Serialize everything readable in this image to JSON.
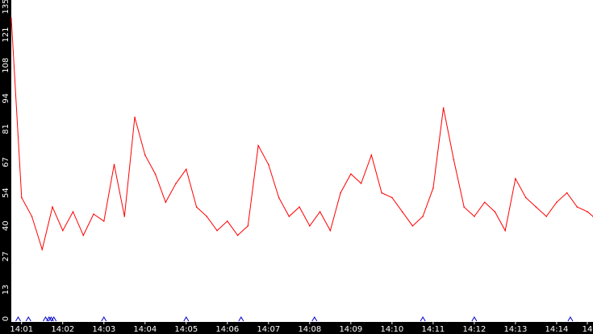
{
  "chart_data": {
    "type": "line",
    "title": "",
    "xlabel": "",
    "ylabel": "",
    "ylim": [
      0,
      135
    ],
    "y_ticks": [
      "0",
      "13",
      "27",
      "40",
      "54",
      "67",
      "81",
      "94",
      "108",
      "121",
      "135"
    ],
    "x_ticks": [
      "14:01",
      "14:02",
      "14:03",
      "14:04",
      "14:05",
      "14:06",
      "14:07",
      "14:08",
      "14:09",
      "14:10",
      "14:11",
      "14:12",
      "14:13",
      "14:14",
      "14"
    ],
    "grid": false,
    "legend": "none",
    "colors": {
      "background": "#ffffff",
      "frame": "#000000",
      "axis_text": "#ffffff",
      "series": "#ff0000",
      "markers": "#0000cc"
    },
    "x_range": [
      "14:00:45",
      "14:14:53"
    ],
    "series": [
      {
        "color": "#ff0000",
        "x": [
          "14:00:45",
          "14:01:00",
          "14:01:15",
          "14:01:30",
          "14:01:45",
          "14:02:00",
          "14:02:15",
          "14:02:30",
          "14:02:45",
          "14:03:00",
          "14:03:15",
          "14:03:30",
          "14:03:45",
          "14:04:00",
          "14:04:15",
          "14:04:30",
          "14:04:45",
          "14:05:00",
          "14:05:15",
          "14:05:30",
          "14:05:45",
          "14:06:00",
          "14:06:15",
          "14:06:30",
          "14:06:45",
          "14:07:00",
          "14:07:15",
          "14:07:30",
          "14:07:45",
          "14:08:00",
          "14:08:15",
          "14:08:30",
          "14:08:45",
          "14:09:00",
          "14:09:15",
          "14:09:30",
          "14:09:45",
          "14:10:00",
          "14:10:15",
          "14:10:30",
          "14:10:45",
          "14:11:00",
          "14:11:15",
          "14:11:30",
          "14:11:45",
          "14:12:00",
          "14:12:15",
          "14:12:30",
          "14:12:45",
          "14:13:00",
          "14:13:15",
          "14:13:30",
          "14:13:45",
          "14:14:00",
          "14:14:15",
          "14:14:30",
          "14:14:45",
          "14:14:53"
        ],
        "values": [
          128,
          52,
          44,
          30,
          48,
          38,
          46,
          36,
          45,
          42,
          66,
          44,
          86,
          70,
          62,
          50,
          58,
          64,
          48,
          44,
          38,
          42,
          36,
          40,
          74,
          66,
          52,
          44,
          48,
          40,
          46,
          38,
          54,
          62,
          58,
          70,
          54,
          52,
          46,
          40,
          44,
          56,
          90,
          68,
          48,
          44,
          50,
          46,
          38,
          60,
          52,
          48,
          44,
          50,
          54,
          48,
          46,
          44
        ]
      }
    ],
    "event_markers": [
      "14:00:55",
      "14:01:10",
      "14:01:35",
      "14:01:40",
      "14:01:43",
      "14:01:47",
      "14:03:00",
      "14:05:00",
      "14:06:20",
      "14:08:07",
      "14:10:45",
      "14:12:00",
      "14:14:20"
    ]
  }
}
